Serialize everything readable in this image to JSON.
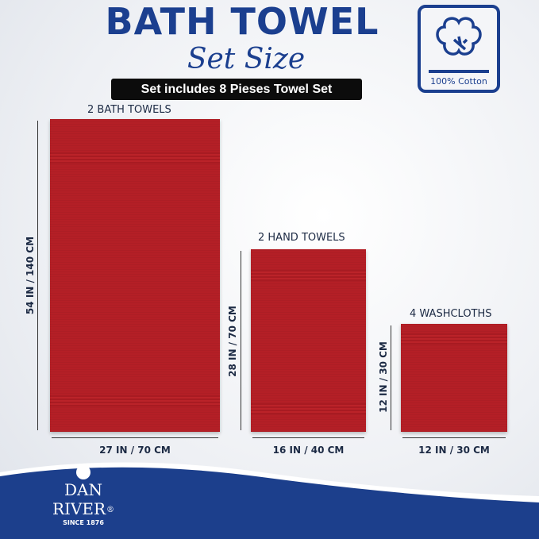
{
  "header": {
    "title": "BATH TOWEL",
    "script_subtitle": "Set Size",
    "set_banner": "Set includes 8 Pieses Towel Set"
  },
  "badge": {
    "icon": "cotton-flower-icon",
    "label": "100% Cotton"
  },
  "towels": [
    {
      "label": "2 BATH TOWELS",
      "height": "54 IN / 140 CM",
      "width": "27 IN / 70 CM"
    },
    {
      "label": "2 HAND TOWELS",
      "height": "28 IN / 70 CM",
      "width": "16 IN / 40 CM"
    },
    {
      "label": "4 WASHCLOTHS",
      "height": "12 IN / 30 CM",
      "width": "12 IN / 30 CM"
    }
  ],
  "brand": {
    "name_line1": "DAN",
    "name_line2": "RIVER",
    "registered": "®",
    "since": "SINCE 1876"
  },
  "colors": {
    "navy": "#1b3f8f",
    "towel_red": "#b41f26"
  }
}
